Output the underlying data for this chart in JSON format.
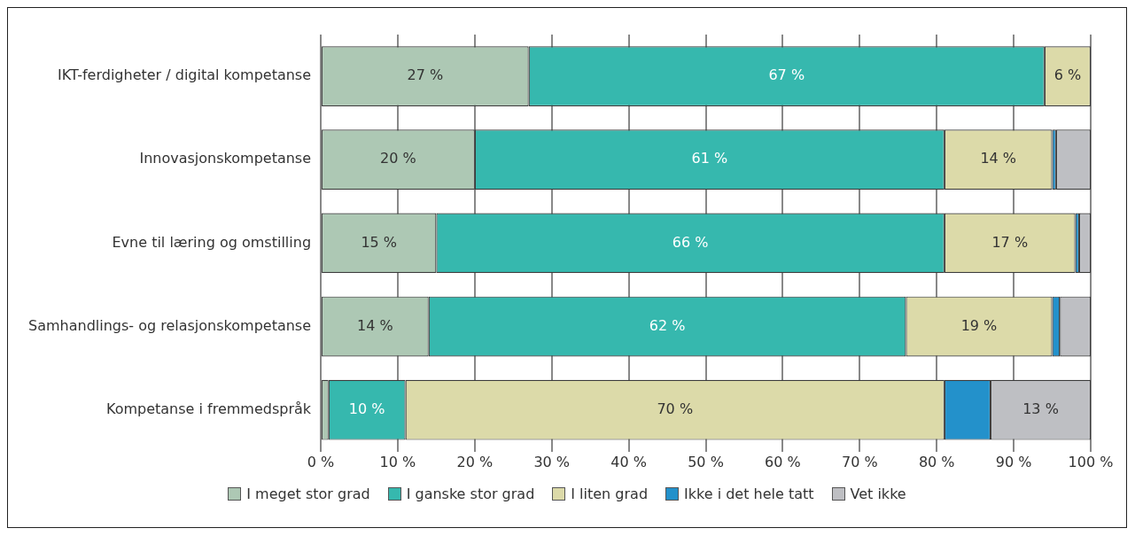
{
  "chart_data": {
    "type": "bar",
    "orientation": "horizontal",
    "stacked": true,
    "categories": [
      "IKT-ferdigheter / digital kompetanse",
      "Innovasjonskompetanse",
      "Evne til læring og omstilling",
      "Samhandlings- og relasjonskompetanse",
      "Kompetanse i fremmedspråk"
    ],
    "series": [
      {
        "name": "I meget stor grad",
        "color": "#adc8b4",
        "values": [
          27,
          20,
          15,
          14,
          1
        ],
        "value_labels": [
          "27 %",
          "20 %",
          "15 %",
          "14 %",
          null
        ]
      },
      {
        "name": "I ganske stor grad",
        "color": "#36b8ae",
        "values": [
          67,
          61,
          66,
          62,
          10
        ],
        "value_labels": [
          "67 %",
          "61 %",
          "66 %",
          "62 %",
          "10 %"
        ]
      },
      {
        "name": "I liten grad",
        "color": "#dcdaa9",
        "values": [
          6,
          14,
          17,
          19,
          70
        ],
        "value_labels": [
          "6 %",
          "14 %",
          "17 %",
          "19 %",
          "70 %"
        ]
      },
      {
        "name": "Ikke i det hele tatt",
        "color": "#2391cb",
        "values": [
          0,
          0.5,
          0.5,
          1,
          6
        ]
      },
      {
        "name": "Vet ikke",
        "color": "#bebfc3",
        "values": [
          0,
          4.5,
          1.5,
          4,
          13
        ],
        "value_labels": [
          null,
          null,
          null,
          null,
          "13 %"
        ]
      }
    ],
    "xlim": [
      0,
      100
    ],
    "xticks": [
      {
        "value": 0,
        "label": "0 %"
      },
      {
        "value": 10,
        "label": "10 %"
      },
      {
        "value": 20,
        "label": "20 %"
      },
      {
        "value": 30,
        "label": "30 %"
      },
      {
        "value": 40,
        "label": "40 %"
      },
      {
        "value": 50,
        "label": "50 %"
      },
      {
        "value": 60,
        "label": "60 %"
      },
      {
        "value": 70,
        "label": "70 %"
      },
      {
        "value": 80,
        "label": "80 %"
      },
      {
        "value": 90,
        "label": "90 %"
      },
      {
        "value": 100,
        "label": "100 %"
      }
    ],
    "grid": "x",
    "legend": "bottom"
  }
}
